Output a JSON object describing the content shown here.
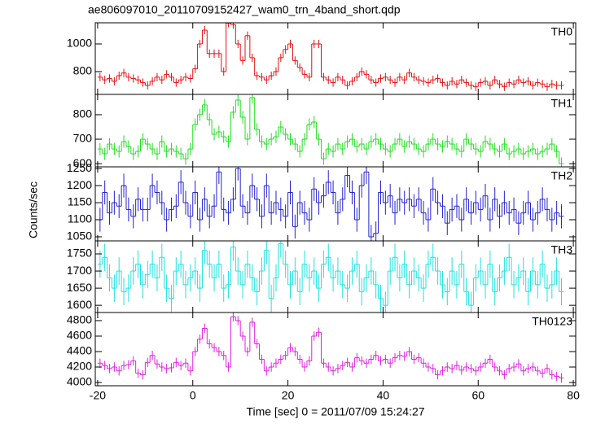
{
  "chart_data": {
    "type": "step",
    "title": "ae806097010_20110709152427_wam0_trn_4band_short.qdp",
    "x_label": "Time [sec] 0 = 2011/07/09 15:24:27",
    "y_label": "Counts/sec",
    "xlim": [
      -20.5,
      80.5
    ],
    "xticks": [
      -20,
      0,
      20,
      40,
      60,
      80
    ],
    "x": [
      -19.5,
      -18.5,
      -17.5,
      -16.5,
      -15.5,
      -14.5,
      -13.5,
      -12.5,
      -11.5,
      -10.5,
      -9.5,
      -8.5,
      -7.5,
      -6.5,
      -5.5,
      -4.5,
      -3.5,
      -2.5,
      -1.5,
      -0.5,
      0.5,
      1.5,
      2.5,
      3.5,
      4.5,
      5.5,
      6.5,
      7.5,
      8.5,
      9.5,
      10.5,
      11.5,
      12.5,
      13.5,
      14.5,
      15.5,
      16.5,
      17.5,
      18.5,
      19.5,
      20.5,
      21.5,
      22.5,
      23.5,
      24.5,
      25.5,
      26.5,
      27.5,
      28.5,
      29.5,
      30.5,
      31.5,
      32.5,
      33.5,
      34.5,
      35.5,
      36.5,
      37.5,
      38.5,
      39.5,
      40.5,
      41.5,
      42.5,
      43.5,
      44.5,
      45.5,
      46.5,
      47.5,
      48.5,
      49.5,
      50.5,
      51.5,
      52.5,
      53.5,
      54.5,
      55.5,
      56.5,
      57.5,
      58.5,
      59.5,
      60.5,
      61.5,
      62.5,
      63.5,
      64.5,
      65.5,
      66.5,
      67.5,
      68.5,
      69.5,
      70.5,
      71.5,
      72.5,
      73.5,
      74.5,
      75.5,
      76.5,
      77.5
    ],
    "series": [
      {
        "name": "TH0",
        "color": "#e01010",
        "error": 30,
        "ylim": [
          635,
          1153
        ],
        "yticks": [
          800,
          1000
        ],
        "values": [
          760,
          740,
          750,
          730,
          770,
          790,
          760,
          750,
          740,
          720,
          700,
          730,
          760,
          740,
          780,
          760,
          720,
          740,
          760,
          750,
          820,
          1000,
          1100,
          930,
          930,
          930,
          800,
          1150,
          1140,
          1000,
          880,
          1060,
          900,
          770,
          760,
          740,
          770,
          800,
          900,
          960,
          1000,
          880,
          830,
          780,
          760,
          1000,
          1000,
          760,
          740,
          720,
          760,
          740,
          700,
          730,
          760,
          800,
          780,
          740,
          720,
          750,
          760,
          740,
          720,
          760,
          740,
          790,
          760,
          740,
          730,
          720,
          740,
          750,
          720,
          700,
          730,
          710,
          740,
          720,
          700,
          690,
          720,
          730,
          700,
          740,
          710,
          690,
          720,
          710,
          740,
          720,
          730,
          700,
          720,
          710,
          690,
          710,
          700,
          700
        ]
      },
      {
        "name": "TH1",
        "color": "#22dd22",
        "error": 25,
        "ylim": [
          587,
          883
        ],
        "yticks": [
          600,
          700,
          800
        ],
        "values": [
          660,
          640,
          680,
          660,
          650,
          690,
          670,
          640,
          650,
          700,
          680,
          660,
          640,
          690,
          650,
          660,
          650,
          640,
          620,
          660,
          760,
          800,
          840,
          780,
          720,
          730,
          710,
          690,
          810,
          860,
          790,
          700,
          870,
          740,
          690,
          680,
          700,
          710,
          750,
          720,
          700,
          680,
          650,
          700,
          760,
          770,
          700,
          620,
          660,
          650,
          680,
          660,
          690,
          700,
          670,
          680,
          660,
          690,
          700,
          680,
          660,
          650,
          680,
          700,
          670,
          690,
          680,
          660,
          650,
          680,
          700,
          680,
          670,
          690,
          680,
          660,
          650,
          700,
          680,
          660,
          650,
          690,
          680,
          660,
          650,
          680,
          640,
          650,
          660,
          640,
          650,
          660,
          640,
          650,
          660,
          680,
          650,
          600
        ]
      },
      {
        "name": "TH2",
        "color": "#2222cc",
        "error": 35,
        "ylim": [
          1038,
          1255
        ],
        "yticks": [
          1050,
          1100,
          1150,
          1200,
          1250
        ],
        "values": [
          1100,
          1180,
          1120,
          1150,
          1140,
          1200,
          1130,
          1110,
          1160,
          1130,
          1130,
          1200,
          1180,
          1150,
          1100,
          1130,
          1140,
          1210,
          1150,
          1110,
          1180,
          1100,
          1160,
          1110,
          1140,
          1240,
          1130,
          1120,
          1160,
          1250,
          1140,
          1120,
          1200,
          1160,
          1110,
          1200,
          1120,
          1150,
          1130,
          1110,
          1180,
          1080,
          1150,
          1120,
          1100,
          1190,
          1150,
          1170,
          1210,
          1180,
          1120,
          1160,
          1230,
          1180,
          1100,
          1200,
          1240,
          1050,
          1060,
          1180,
          1150,
          1170,
          1120,
          1160,
          1150,
          1160,
          1140,
          1160,
          1120,
          1100,
          1190,
          1150,
          1140,
          1090,
          1130,
          1140,
          1100,
          1160,
          1120,
          1150,
          1130,
          1170,
          1100,
          1160,
          1110,
          1150,
          1120,
          1130,
          1090,
          1120,
          1150,
          1100,
          1120,
          1160,
          1130,
          1100,
          1120,
          1110
        ]
      },
      {
        "name": "TH3",
        "color": "#22e0e0",
        "error": 40,
        "ylim": [
          1579,
          1788
        ],
        "yticks": [
          1600,
          1650,
          1700,
          1750
        ],
        "values": [
          1720,
          1740,
          1680,
          1650,
          1700,
          1640,
          1650,
          1700,
          1720,
          1660,
          1690,
          1720,
          1680,
          1740,
          1650,
          1620,
          1700,
          1720,
          1660,
          1680,
          1700,
          1650,
          1760,
          1720,
          1680,
          1720,
          1650,
          1660,
          1770,
          1700,
          1660,
          1720,
          1680,
          1640,
          1700,
          1760,
          1620,
          1680,
          1780,
          1720,
          1660,
          1700,
          1640,
          1720,
          1680,
          1700,
          1650,
          1720,
          1740,
          1680,
          1700,
          1660,
          1650,
          1700,
          1720,
          1640,
          1680,
          1700,
          1660,
          1620,
          1600,
          1700,
          1740,
          1680,
          1720,
          1660,
          1700,
          1680,
          1650,
          1720,
          1740,
          1700,
          1660,
          1640,
          1700,
          1660,
          1720,
          1640,
          1600,
          1680,
          1700,
          1660,
          1720,
          1640,
          1680,
          1700,
          1740,
          1660,
          1680,
          1700,
          1640,
          1700,
          1660,
          1720,
          1650,
          1660,
          1700,
          1640
        ]
      },
      {
        "name": "TH0123",
        "color": "#e020e0",
        "error": 60,
        "ylim": [
          3958,
          4905
        ],
        "yticks": [
          4000,
          4200,
          4400,
          4600,
          4800
        ],
        "values": [
          4250,
          4220,
          4180,
          4200,
          4150,
          4220,
          4230,
          4280,
          4120,
          4100,
          4260,
          4350,
          4240,
          4200,
          4180,
          4190,
          4260,
          4220,
          4250,
          4150,
          4400,
          4560,
          4700,
          4500,
          4450,
          4400,
          4350,
          4200,
          4850,
          4800,
          4600,
          4400,
          4780,
          4500,
          4300,
          4150,
          4200,
          4250,
          4300,
          4350,
          4450,
          4400,
          4300,
          4200,
          4280,
          4600,
          4650,
          4250,
          4200,
          4150,
          4180,
          4220,
          4260,
          4200,
          4320,
          4280,
          4250,
          4300,
          4350,
          4280,
          4300,
          4250,
          4320,
          4350,
          4340,
          4400,
          4300,
          4320,
          4250,
          4200,
          4180,
          4100,
          4150,
          4200,
          4180,
          4220,
          4160,
          4200,
          4180,
          4150,
          4200,
          4250,
          4300,
          4200,
          4150,
          4100,
          4180,
          4200,
          4240,
          4150,
          4180,
          4200,
          4150,
          4120,
          4180,
          4100,
          4080,
          4060
        ]
      }
    ]
  }
}
